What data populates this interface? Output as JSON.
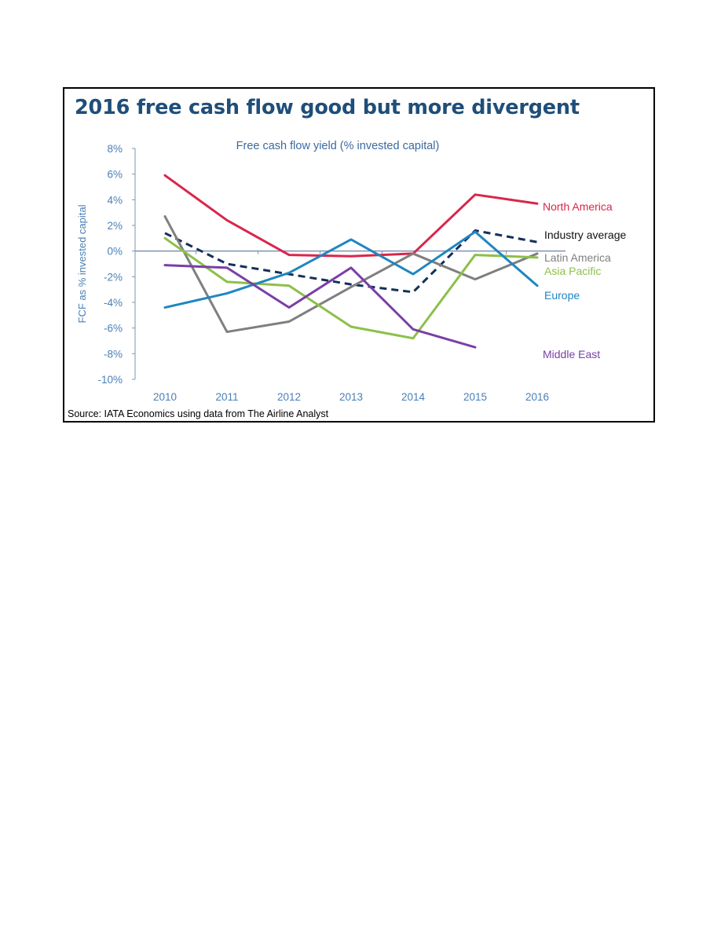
{
  "title": "2016 free cash flow good but more divergent",
  "source": "Source: IATA Economics using data from The Airline Analyst",
  "colors": {
    "title": "#1f4e79",
    "axis_text": "#4a7fb5",
    "axis_line": "#7f93b3"
  },
  "chart_data": {
    "type": "line",
    "title": "Free cash flow yield (% invested capital)",
    "xlabel": "",
    "ylabel": "FCF as % invested capital",
    "x": [
      "2010",
      "2011",
      "2012",
      "2013",
      "2014",
      "2015",
      "2016"
    ],
    "ylim": [
      -10,
      8
    ],
    "yticks": [
      8,
      6,
      4,
      2,
      0,
      -2,
      -4,
      -6,
      -8,
      -10
    ],
    "ytick_labels": [
      "8%",
      "6%",
      "4%",
      "2%",
      "0%",
      "-2%",
      "-4%",
      "-6%",
      "-8%",
      "-10%"
    ],
    "grid": false,
    "legend": "inline labels at right of plot",
    "series": [
      {
        "name": "North America",
        "color": "#d9264b",
        "dashed": false,
        "values": [
          5.9,
          2.4,
          -0.3,
          -0.4,
          -0.2,
          4.4,
          3.7
        ]
      },
      {
        "name": "Industry average",
        "color": "#14305a",
        "dashed": true,
        "values": [
          1.4,
          -1.0,
          -1.8,
          -2.6,
          -3.2,
          1.6,
          0.7
        ]
      },
      {
        "name": "Latin America",
        "color": "#7f7f7f",
        "dashed": false,
        "values": [
          2.7,
          -6.3,
          -5.5,
          -2.8,
          -0.2,
          -2.2,
          -0.2
        ]
      },
      {
        "name": "Asia Pacific",
        "color": "#8cc04a",
        "dashed": false,
        "values": [
          1.0,
          -2.4,
          -2.7,
          -5.9,
          -6.8,
          -0.3,
          -0.5
        ]
      },
      {
        "name": "Europe",
        "color": "#1f86c1",
        "dashed": false,
        "values": [
          -4.4,
          -3.3,
          -1.7,
          0.9,
          -1.8,
          1.5,
          -2.7
        ]
      },
      {
        "name": "Middle East",
        "color": "#7a3fa6",
        "dashed": false,
        "values": [
          -1.1,
          -1.3,
          -4.4,
          -1.3,
          -6.1,
          -7.5,
          null
        ]
      }
    ]
  }
}
